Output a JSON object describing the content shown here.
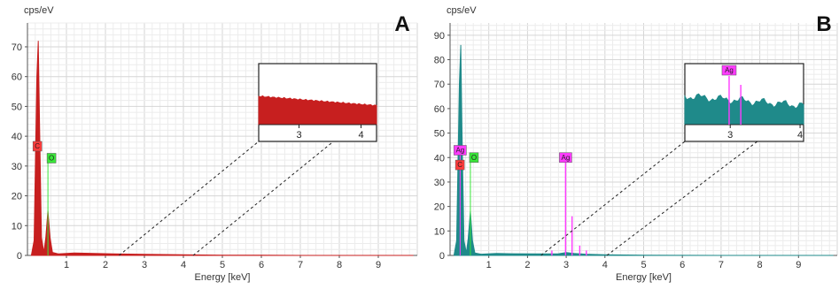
{
  "chart_data": [
    {
      "panel_label": "A",
      "type": "area",
      "ylabel": "cps/eV",
      "xlabel": "Energy [keV]",
      "xlim": [
        0,
        10
      ],
      "ylim": [
        0,
        78
      ],
      "x_ticks": [
        1,
        2,
        3,
        4,
        5,
        6,
        7,
        8,
        9
      ],
      "y_ticks": [
        0,
        10,
        20,
        30,
        40,
        50,
        60,
        70
      ],
      "grid": true,
      "series": [
        {
          "color": "#c71f1f",
          "points": [
            [
              0.1,
              0
            ],
            [
              0.17,
              5
            ],
            [
              0.24,
              60
            ],
            [
              0.277,
              72
            ],
            [
              0.31,
              45
            ],
            [
              0.36,
              6
            ],
            [
              0.42,
              1
            ],
            [
              0.47,
              6
            ],
            [
              0.525,
              15
            ],
            [
              0.58,
              6
            ],
            [
              0.64,
              1
            ],
            [
              0.8,
              0.5
            ],
            [
              1.2,
              0.8
            ],
            [
              1.6,
              0.7
            ],
            [
              2.2,
              0.5
            ],
            [
              3,
              0.4
            ],
            [
              4,
              0.25
            ],
            [
              5,
              0.1
            ],
            [
              6,
              0.05
            ],
            [
              7,
              0
            ],
            [
              9.9,
              0
            ]
          ]
        }
      ],
      "peak_markers": [
        {
          "label": "C",
          "energy": 0.277,
          "height": 35,
          "color": "#ff3b3b"
        },
        {
          "label": "O",
          "energy": 0.525,
          "height": 31,
          "color": "#39e639"
        }
      ],
      "inset": {
        "x_ticks": [
          3,
          4
        ],
        "x_range": [
          2.35,
          4.25
        ],
        "level": 0.6,
        "color": "#c71f1f"
      }
    },
    {
      "panel_label": "B",
      "type": "area",
      "ylabel": "cps/eV",
      "xlabel": "Energy [keV]",
      "xlim": [
        0,
        10
      ],
      "ylim": [
        0,
        95
      ],
      "x_ticks": [
        1,
        2,
        3,
        4,
        5,
        6,
        7,
        8,
        9
      ],
      "y_ticks": [
        0,
        10,
        20,
        30,
        40,
        50,
        60,
        70,
        80,
        90
      ],
      "grid": true,
      "series": [
        {
          "color": "#1f8a8a",
          "points": [
            [
              0.1,
              0
            ],
            [
              0.17,
              6
            ],
            [
              0.24,
              70
            ],
            [
              0.277,
              86
            ],
            [
              0.31,
              50
            ],
            [
              0.36,
              6
            ],
            [
              0.42,
              1
            ],
            [
              0.47,
              7
            ],
            [
              0.525,
              18
            ],
            [
              0.58,
              6
            ],
            [
              0.64,
              1
            ],
            [
              0.8,
              0.5
            ],
            [
              1.2,
              0.8
            ],
            [
              1.6,
              0.7
            ],
            [
              2.2,
              0.6
            ],
            [
              2.8,
              0.7
            ],
            [
              3.0,
              1.2
            ],
            [
              3.2,
              0.8
            ],
            [
              3.5,
              0.5
            ],
            [
              4,
              0.3
            ],
            [
              5,
              0.1
            ],
            [
              6,
              0.05
            ],
            [
              7,
              0
            ],
            [
              9.9,
              0
            ]
          ]
        }
      ],
      "peak_markers": [
        {
          "label": "Ag",
          "energy": 0.26,
          "height": 41,
          "color": "#ff3bff"
        },
        {
          "label": "C",
          "energy": 0.277,
          "height": 35,
          "color": "#ff3b3b"
        },
        {
          "label": "O",
          "energy": 0.525,
          "height": 38,
          "color": "#39e639"
        },
        {
          "label": "Ag",
          "energy": 2.984,
          "height": 38,
          "color": "#ff3bff"
        }
      ],
      "ag_lines": [
        {
          "energy": 2.984,
          "height": 38
        },
        {
          "energy": 3.151,
          "height": 16
        },
        {
          "energy": 3.35,
          "height": 4
        },
        {
          "energy": 3.52,
          "height": 2
        },
        {
          "energy": 2.63,
          "height": 2
        }
      ],
      "inset": {
        "x_ticks": [
          3,
          4
        ],
        "x_range": [
          2.35,
          4.05
        ],
        "level": 0.8,
        "color": "#1f8a8a",
        "tag": "Ag",
        "tag_energy": 2.984
      }
    }
  ]
}
